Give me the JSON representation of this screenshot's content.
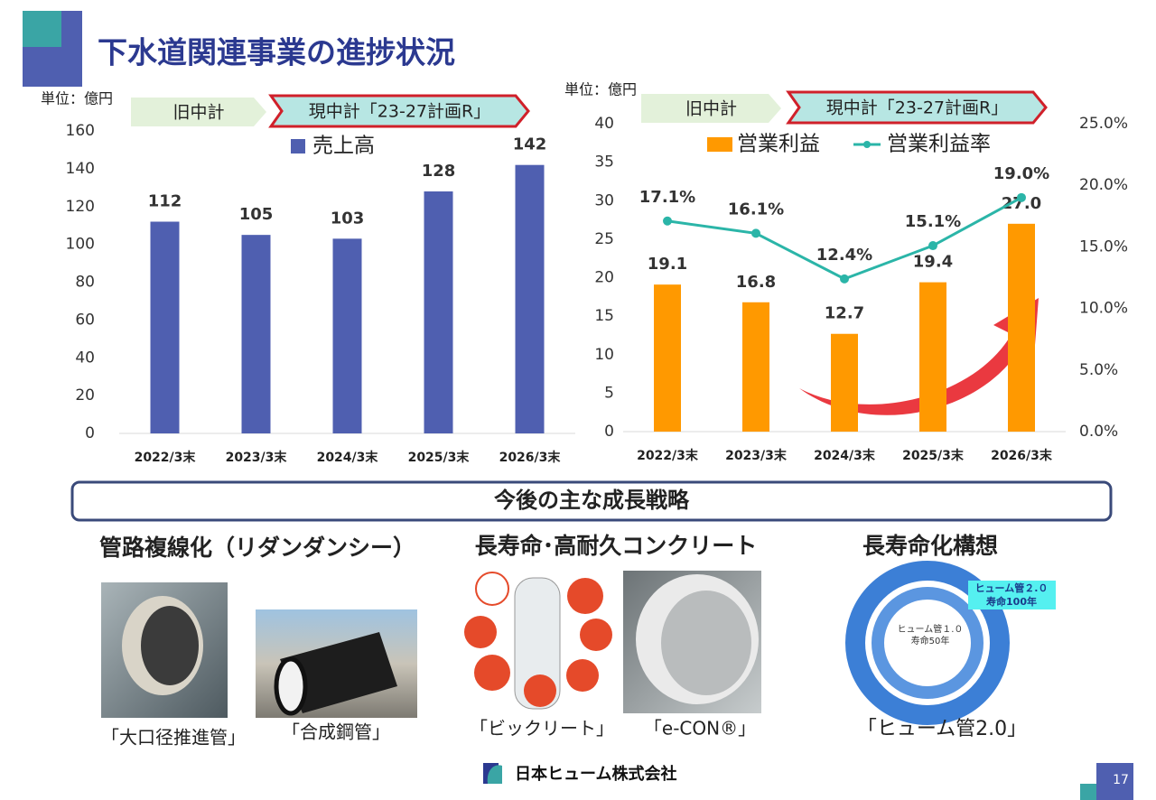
{
  "title": "下水道関連事業の進捗状況",
  "chart_data": [
    {
      "type": "bar",
      "unit_label": "単位：億円",
      "periods": [
        "旧中計",
        "現中計「23-27計画R」"
      ],
      "categories": [
        "2022/3末",
        "2023/3末",
        "2024/3末",
        "2025/3末",
        "2026/3末"
      ],
      "series": [
        {
          "name": "売上高",
          "color": "#4f5fb0",
          "values": [
            112,
            105,
            103,
            128,
            142
          ]
        }
      ],
      "ylim": [
        0,
        160
      ],
      "yticks": [
        0,
        20,
        40,
        60,
        80,
        100,
        120,
        140,
        160
      ]
    },
    {
      "type": "bar",
      "unit_label": "単位：億円",
      "periods": [
        "旧中計",
        "現中計「23-27計画R」"
      ],
      "categories": [
        "2022/3末",
        "2023/3末",
        "2024/3末",
        "2025/3末",
        "2026/3末"
      ],
      "series": [
        {
          "name": "営業利益",
          "color": "#ff9900",
          "values": [
            19.1,
            16.8,
            12.7,
            19.4,
            27.0
          ],
          "value_labels": [
            "19.1",
            "16.8",
            "12.7",
            "19.4",
            "27.0"
          ]
        },
        {
          "name": "営業利益率",
          "type": "line",
          "axis": "y2",
          "color": "#2bb5a8",
          "values": [
            17.1,
            16.1,
            12.4,
            15.1,
            19.0
          ],
          "value_labels": [
            "17.1%",
            "16.1%",
            "12.4%",
            "15.1%",
            "19.0%"
          ]
        }
      ],
      "ylim": [
        0,
        40
      ],
      "yticks": [
        0,
        5,
        10,
        15,
        20,
        25,
        30,
        35,
        40
      ],
      "y2lim": [
        0,
        25
      ],
      "y2ticks": [
        {
          "value": 0,
          "label": "0.0%"
        },
        {
          "value": 5,
          "label": "5.0%"
        },
        {
          "value": 10,
          "label": "10.0%"
        },
        {
          "value": 15,
          "label": "15.0%"
        },
        {
          "value": 20,
          "label": "20.0%"
        },
        {
          "value": 25,
          "label": "25.0%"
        }
      ]
    }
  ],
  "strategy": {
    "heading": "今後の主な成長戦略",
    "items": [
      {
        "title": "管路複線化（リダンダンシー）",
        "captions": [
          "「大口径推進管」",
          "「合成鋼管」"
        ]
      },
      {
        "title": "長寿命･高耐久コンクリート",
        "captions": [
          "「ビックリート」",
          "「e-CON®」"
        ]
      },
      {
        "title": "長寿命化構想",
        "captions": [
          "「ヒューム管2.0」"
        ]
      }
    ],
    "diagram_labels": [
      "ヒューム管２.０",
      "寿命100年",
      "ヒューム管１.０",
      "寿命50年"
    ]
  },
  "footer": {
    "company": "日本ヒューム株式会社",
    "page": 17
  }
}
